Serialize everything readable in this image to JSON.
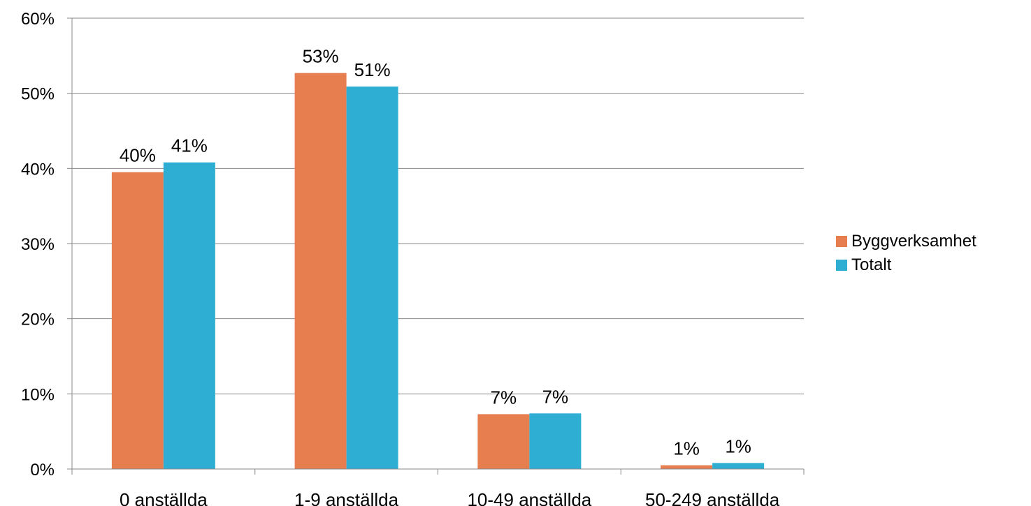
{
  "chart_data": {
    "type": "bar",
    "categories": [
      "0 anställda",
      "1-9 anställda",
      "10-49 anställda",
      "50-249 anställda"
    ],
    "series": [
      {
        "name": "Byggverksamhet",
        "values": [
          0.395,
          0.527,
          0.073,
          0.005
        ],
        "labels": [
          "40%",
          "53%",
          "7%",
          "1%"
        ],
        "color": "#E67E50"
      },
      {
        "name": "Totalt",
        "values": [
          0.408,
          0.509,
          0.074,
          0.008
        ],
        "labels": [
          "41%",
          "51%",
          "7%",
          "1%"
        ],
        "color": "#2FAED4"
      }
    ],
    "yticks": [
      "0%",
      "10%",
      "20%",
      "30%",
      "40%",
      "50%",
      "60%"
    ],
    "ylim": [
      0,
      0.6
    ],
    "grid": true,
    "legend": "right",
    "gridline_color": "#888888"
  }
}
